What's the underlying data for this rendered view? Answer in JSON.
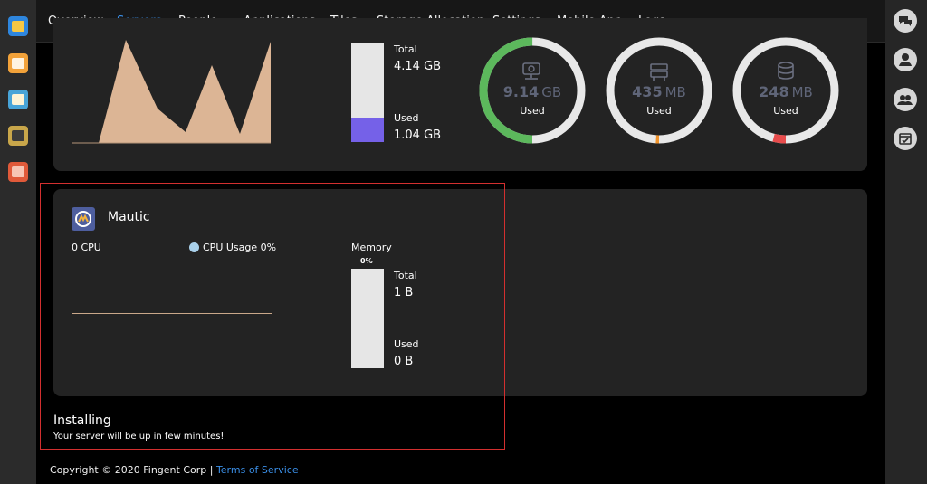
{
  "nav": {
    "items": [
      {
        "label": "Overview"
      },
      {
        "label": "Servers"
      },
      {
        "label": "People"
      },
      {
        "label": "Applications"
      },
      {
        "label": "Tiles"
      },
      {
        "label": "Storage Allocation"
      },
      {
        "label": "Settings"
      },
      {
        "label": "Mobile App"
      },
      {
        "label": "Logs"
      }
    ],
    "active": "Servers"
  },
  "dock": {
    "apps": [
      "files-app-icon",
      "inbox-app-icon",
      "calendar-app-icon",
      "notes-app-icon",
      "photos-app-icon"
    ],
    "colors": [
      "#2e86de",
      "#f2a23a",
      "#48a4d8",
      "#c8a64a",
      "#e05a3a"
    ]
  },
  "right_dock": {
    "icons": [
      "chat-icon",
      "user-icon",
      "users-icon",
      "calendar-check-icon"
    ]
  },
  "top_server": {
    "memory": {
      "total_label": "Total",
      "total_value": "4.14 GB",
      "used_label": "Used",
      "used_value": "1.04 GB",
      "used_fraction": 0.25
    },
    "donuts": [
      {
        "value": "9.14",
        "unit": "GB",
        "label": "Used",
        "icon": "server-icon",
        "color": "#5cb85c",
        "fraction": 0.5
      },
      {
        "value": "435",
        "unit": "MB",
        "label": "Used",
        "icon": "storage-icon",
        "color": "#f0932b",
        "fraction": 0.01
      },
      {
        "value": "248",
        "unit": "MB",
        "label": "Used",
        "icon": "database-icon",
        "color": "#e84c4c",
        "fraction": 0.04
      }
    ],
    "chart_color": "#dcb595"
  },
  "mautic": {
    "name": "Mautic",
    "logo": "mautic-logo-icon",
    "cpu_label": "0 CPU",
    "cpu_legend": "CPU Usage 0%",
    "memory_title": "Memory",
    "memory_percent": "0%",
    "total_label": "Total",
    "total_value": "1 B",
    "used_label": "Used",
    "used_value": "0 B"
  },
  "status": {
    "title": "Installing",
    "message": "Your server will be up in few minutes!"
  },
  "footer": {
    "copyright": "Copyright © 2020 Fingent Corp |",
    "link": "Terms of Service"
  }
}
